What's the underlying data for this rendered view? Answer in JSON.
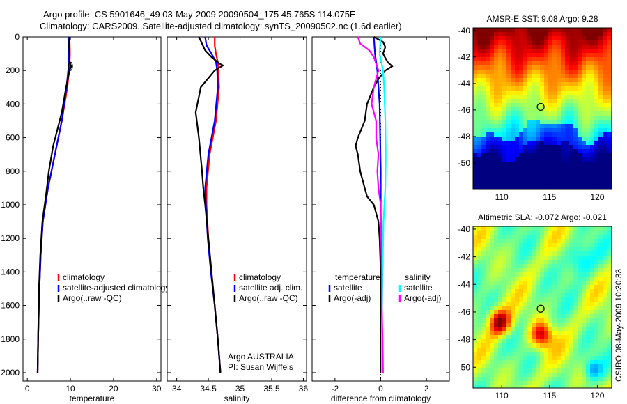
{
  "header": {
    "line1": "Argo profile: CS 5901646_49 03-May-2009 20090504_175 45.765S 114.075E",
    "line2": "Climatology: CARS2009. Satellite-adjusted climatology: synTS_20090502.nc (1.6d earlier)"
  },
  "colors": {
    "red": "#ff0000",
    "blue": "#0000ff",
    "black": "#000000",
    "cyan": "#00ffff",
    "magenta": "#ff00ff"
  },
  "chart_data": [
    {
      "type": "line",
      "xlabel": "temperature",
      "xlim": [
        -1,
        31
      ],
      "ylim": [
        0,
        2050
      ],
      "xticks": [
        0,
        10,
        20,
        30
      ],
      "yticks": [
        0,
        200,
        400,
        600,
        800,
        1000,
        1200,
        1400,
        1600,
        1800,
        2000
      ],
      "legend": [
        "climatology",
        "satellite-adjusted climatology",
        "Argo(..raw -QC)"
      ],
      "series": [
        {
          "name": "climatology",
          "color": "red",
          "depth": [
            0,
            100,
            170,
            300,
            500,
            700,
            900,
            1100,
            1300,
            1500,
            1800,
            2000
          ],
          "values": [
            9.8,
            9.9,
            9.8,
            9.3,
            8.0,
            6.4,
            4.8,
            3.6,
            3.1,
            2.8,
            2.5,
            2.4
          ]
        },
        {
          "name": "satellite-adjusted climatology",
          "color": "blue",
          "depth": [
            0,
            100,
            170,
            300,
            500,
            700,
            900,
            1100,
            1300,
            1500,
            1800,
            2000
          ],
          "values": [
            9.5,
            9.6,
            9.6,
            9.1,
            8.0,
            6.4,
            4.8,
            3.6,
            3.1,
            2.8,
            2.5,
            2.4
          ]
        },
        {
          "name": "Argo(..raw -QC)",
          "color": "black",
          "depth": [
            0,
            50,
            100,
            150,
            175,
            200,
            300,
            450,
            550,
            650,
            800,
            950,
            1100,
            1300,
            1500,
            1800,
            2000
          ],
          "values": [
            9.8,
            9.7,
            9.8,
            9.8,
            10.2,
            9.8,
            9.0,
            8.0,
            7.0,
            6.0,
            5.0,
            4.3,
            3.5,
            3.0,
            2.7,
            2.5,
            2.4
          ]
        }
      ]
    },
    {
      "type": "line",
      "xlabel": "salinity",
      "xlim": [
        33.85,
        36.05
      ],
      "ylim": [
        0,
        2050
      ],
      "xticks": [
        34,
        34.5,
        35,
        35.5,
        36
      ],
      "legend": [
        "climatology",
        "satellite adj. clim.",
        "Argo(..raw -QC)"
      ],
      "annotations": [
        "Argo AUSTRALIA",
        "PI: Susan Wijffels"
      ],
      "series": [
        {
          "name": "climatology",
          "color": "red",
          "depth": [
            0,
            50,
            100,
            150,
            200,
            300,
            500,
            700,
            900,
            1000,
            1200,
            1400,
            1600,
            1800,
            2000
          ],
          "values": [
            34.6,
            34.6,
            34.62,
            34.65,
            34.66,
            34.67,
            34.62,
            34.52,
            34.47,
            34.47,
            34.5,
            34.55,
            34.6,
            34.65,
            34.69
          ]
        },
        {
          "name": "satellite adj. clim.",
          "color": "blue",
          "depth": [
            0,
            50,
            100,
            150,
            200,
            300,
            500,
            700,
            900,
            1000,
            1200,
            1400,
            1600,
            1800,
            2000
          ],
          "values": [
            34.45,
            34.47,
            34.55,
            34.62,
            34.64,
            34.65,
            34.6,
            34.5,
            34.45,
            34.46,
            34.49,
            34.54,
            34.6,
            34.65,
            34.69
          ]
        },
        {
          "name": "Argo(..raw -QC)",
          "color": "black",
          "depth": [
            0,
            40,
            80,
            120,
            160,
            170,
            200,
            300,
            450,
            600,
            800,
            900,
            1000,
            1200,
            1400,
            1600,
            1800,
            2000
          ],
          "values": [
            34.35,
            34.4,
            34.45,
            34.55,
            34.68,
            34.73,
            34.6,
            34.38,
            34.3,
            34.35,
            34.4,
            34.42,
            34.45,
            34.5,
            34.55,
            34.6,
            34.65,
            34.69
          ]
        }
      ]
    },
    {
      "type": "line",
      "xlabel": "difference from climatology",
      "xlim": [
        -3.0,
        3.0
      ],
      "ylim": [
        0,
        2050
      ],
      "xticks": [
        -2,
        0,
        2
      ],
      "legend_left": [
        "temperature",
        "satellite",
        "Argo(-adj)"
      ],
      "legend_right": [
        "salinity",
        "satellite",
        "Argo(-adj)"
      ],
      "series": [
        {
          "name": "temperature satellite",
          "color": "blue",
          "depth": [
            0,
            100,
            200,
            400,
            800,
            1200,
            1600,
            2000
          ],
          "values": [
            -0.3,
            -0.25,
            -0.15,
            -0.05,
            0.0,
            0.0,
            0.0,
            0.0
          ]
        },
        {
          "name": "temperature Argo(-adj)",
          "color": "black",
          "depth": [
            0,
            30,
            60,
            100,
            150,
            175,
            200,
            250,
            300,
            400,
            500,
            600,
            650,
            700,
            800,
            900,
            950,
            1000,
            1100,
            1200,
            1400,
            1600,
            1800,
            2000
          ],
          "values": [
            -0.3,
            0.1,
            0.2,
            0.1,
            0.3,
            0.5,
            0.2,
            -0.1,
            -0.3,
            -0.6,
            -0.7,
            -1.0,
            -1.1,
            -1.0,
            -0.9,
            -0.7,
            -0.6,
            -0.3,
            -0.1,
            -0.05,
            0.0,
            0.0,
            0.0,
            0.0
          ]
        },
        {
          "name": "salinity satellite",
          "color": "cyan",
          "depth": [
            0,
            100,
            200,
            300,
            500,
            700,
            900,
            1100,
            1400,
            1700,
            2000
          ],
          "values": [
            0.0,
            -0.05,
            0.1,
            0.15,
            0.2,
            0.22,
            0.2,
            0.12,
            0.08,
            0.05,
            0.05
          ]
        },
        {
          "name": "salinity Argo(-adj)",
          "color": "magenta",
          "depth": [
            0,
            40,
            80,
            120,
            160,
            200,
            250,
            300,
            400,
            500,
            600,
            700,
            800,
            900,
            1000,
            1200,
            1400,
            1600,
            1800,
            2000
          ],
          "values": [
            -1.0,
            -0.9,
            -0.5,
            -0.3,
            -0.2,
            -0.1,
            -0.2,
            -0.3,
            -0.4,
            -0.2,
            -0.2,
            -0.1,
            -0.15,
            -0.1,
            0.0,
            0.02,
            0.05,
            0.05,
            0.08,
            0.1
          ]
        }
      ]
    },
    {
      "type": "heatmap",
      "title": "AMSR-E SST: 9.08 Argo: 9.28",
      "xlim": [
        107,
        121.5
      ],
      "ylim": [
        -52,
        -39.8
      ],
      "xticks": [
        110,
        115,
        120
      ],
      "yticks": [
        -40,
        -42,
        -44,
        -46,
        -48,
        -50
      ],
      "marker": {
        "lon": 114.075,
        "lat": -45.765
      }
    },
    {
      "type": "heatmap",
      "title": "Altimetric SLA: -0.072 Argo: -0.021",
      "xlim": [
        107,
        121.5
      ],
      "ylim": [
        -51.5,
        -39.8
      ],
      "xticks": [
        110,
        115,
        120
      ],
      "yticks": [
        -40,
        -42,
        -44,
        -46,
        -48,
        -50
      ],
      "marker": {
        "lon": 114.075,
        "lat": -45.765
      }
    }
  ],
  "footer": {
    "stamp": "CSIRO 08-May-2009 10:30:33"
  }
}
